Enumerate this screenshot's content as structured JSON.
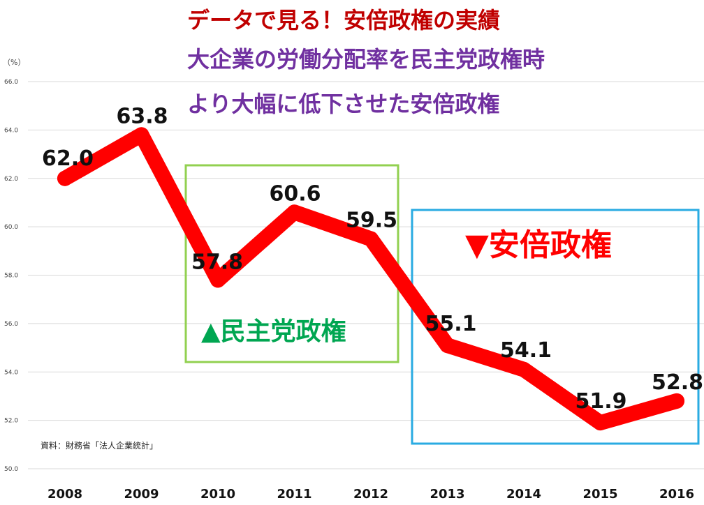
{
  "title_lines": [
    "データで見る！安倍政権の実績",
    "大企業の労働分配率を民主党政権時",
    "より大幅に低下させた安倍政権"
  ],
  "unit_label": "（%）",
  "source_note": "資料：財務省「法人企業統計」",
  "annotations": {
    "dpj_label": "▲民主党政権",
    "abe_label": "▼安倍政権"
  },
  "colors": {
    "line": "#FF0000",
    "title_red": "#C00000",
    "title_purple": "#7030A0",
    "dpj_box": "#92D050",
    "dpj_text": "#00A651",
    "abe_box": "#29ABE2",
    "abe_text": "#FF0000",
    "grid": "#D9D9D9"
  },
  "chart_data": {
    "type": "line",
    "x": [
      "2008",
      "2009",
      "2010",
      "2011",
      "2012",
      "2013",
      "2014",
      "2015",
      "2016"
    ],
    "series": [
      {
        "values": [
          62.0,
          63.8,
          57.8,
          60.6,
          59.5,
          55.1,
          54.1,
          51.9,
          52.8
        ],
        "data_labels": [
          "62.0",
          "63.8",
          "57.8",
          "60.6",
          "59.5",
          "55.1",
          "54.1",
          "51.9",
          "52.8"
        ]
      }
    ],
    "yticks": [
      "50.0",
      "52.0",
      "54.0",
      "56.0",
      "58.0",
      "60.0",
      "62.0",
      "64.0",
      "66.0"
    ],
    "ylim": [
      50,
      66
    ],
    "grid": true,
    "ylabel": "（%）",
    "xlabel": "",
    "legend": "none"
  }
}
